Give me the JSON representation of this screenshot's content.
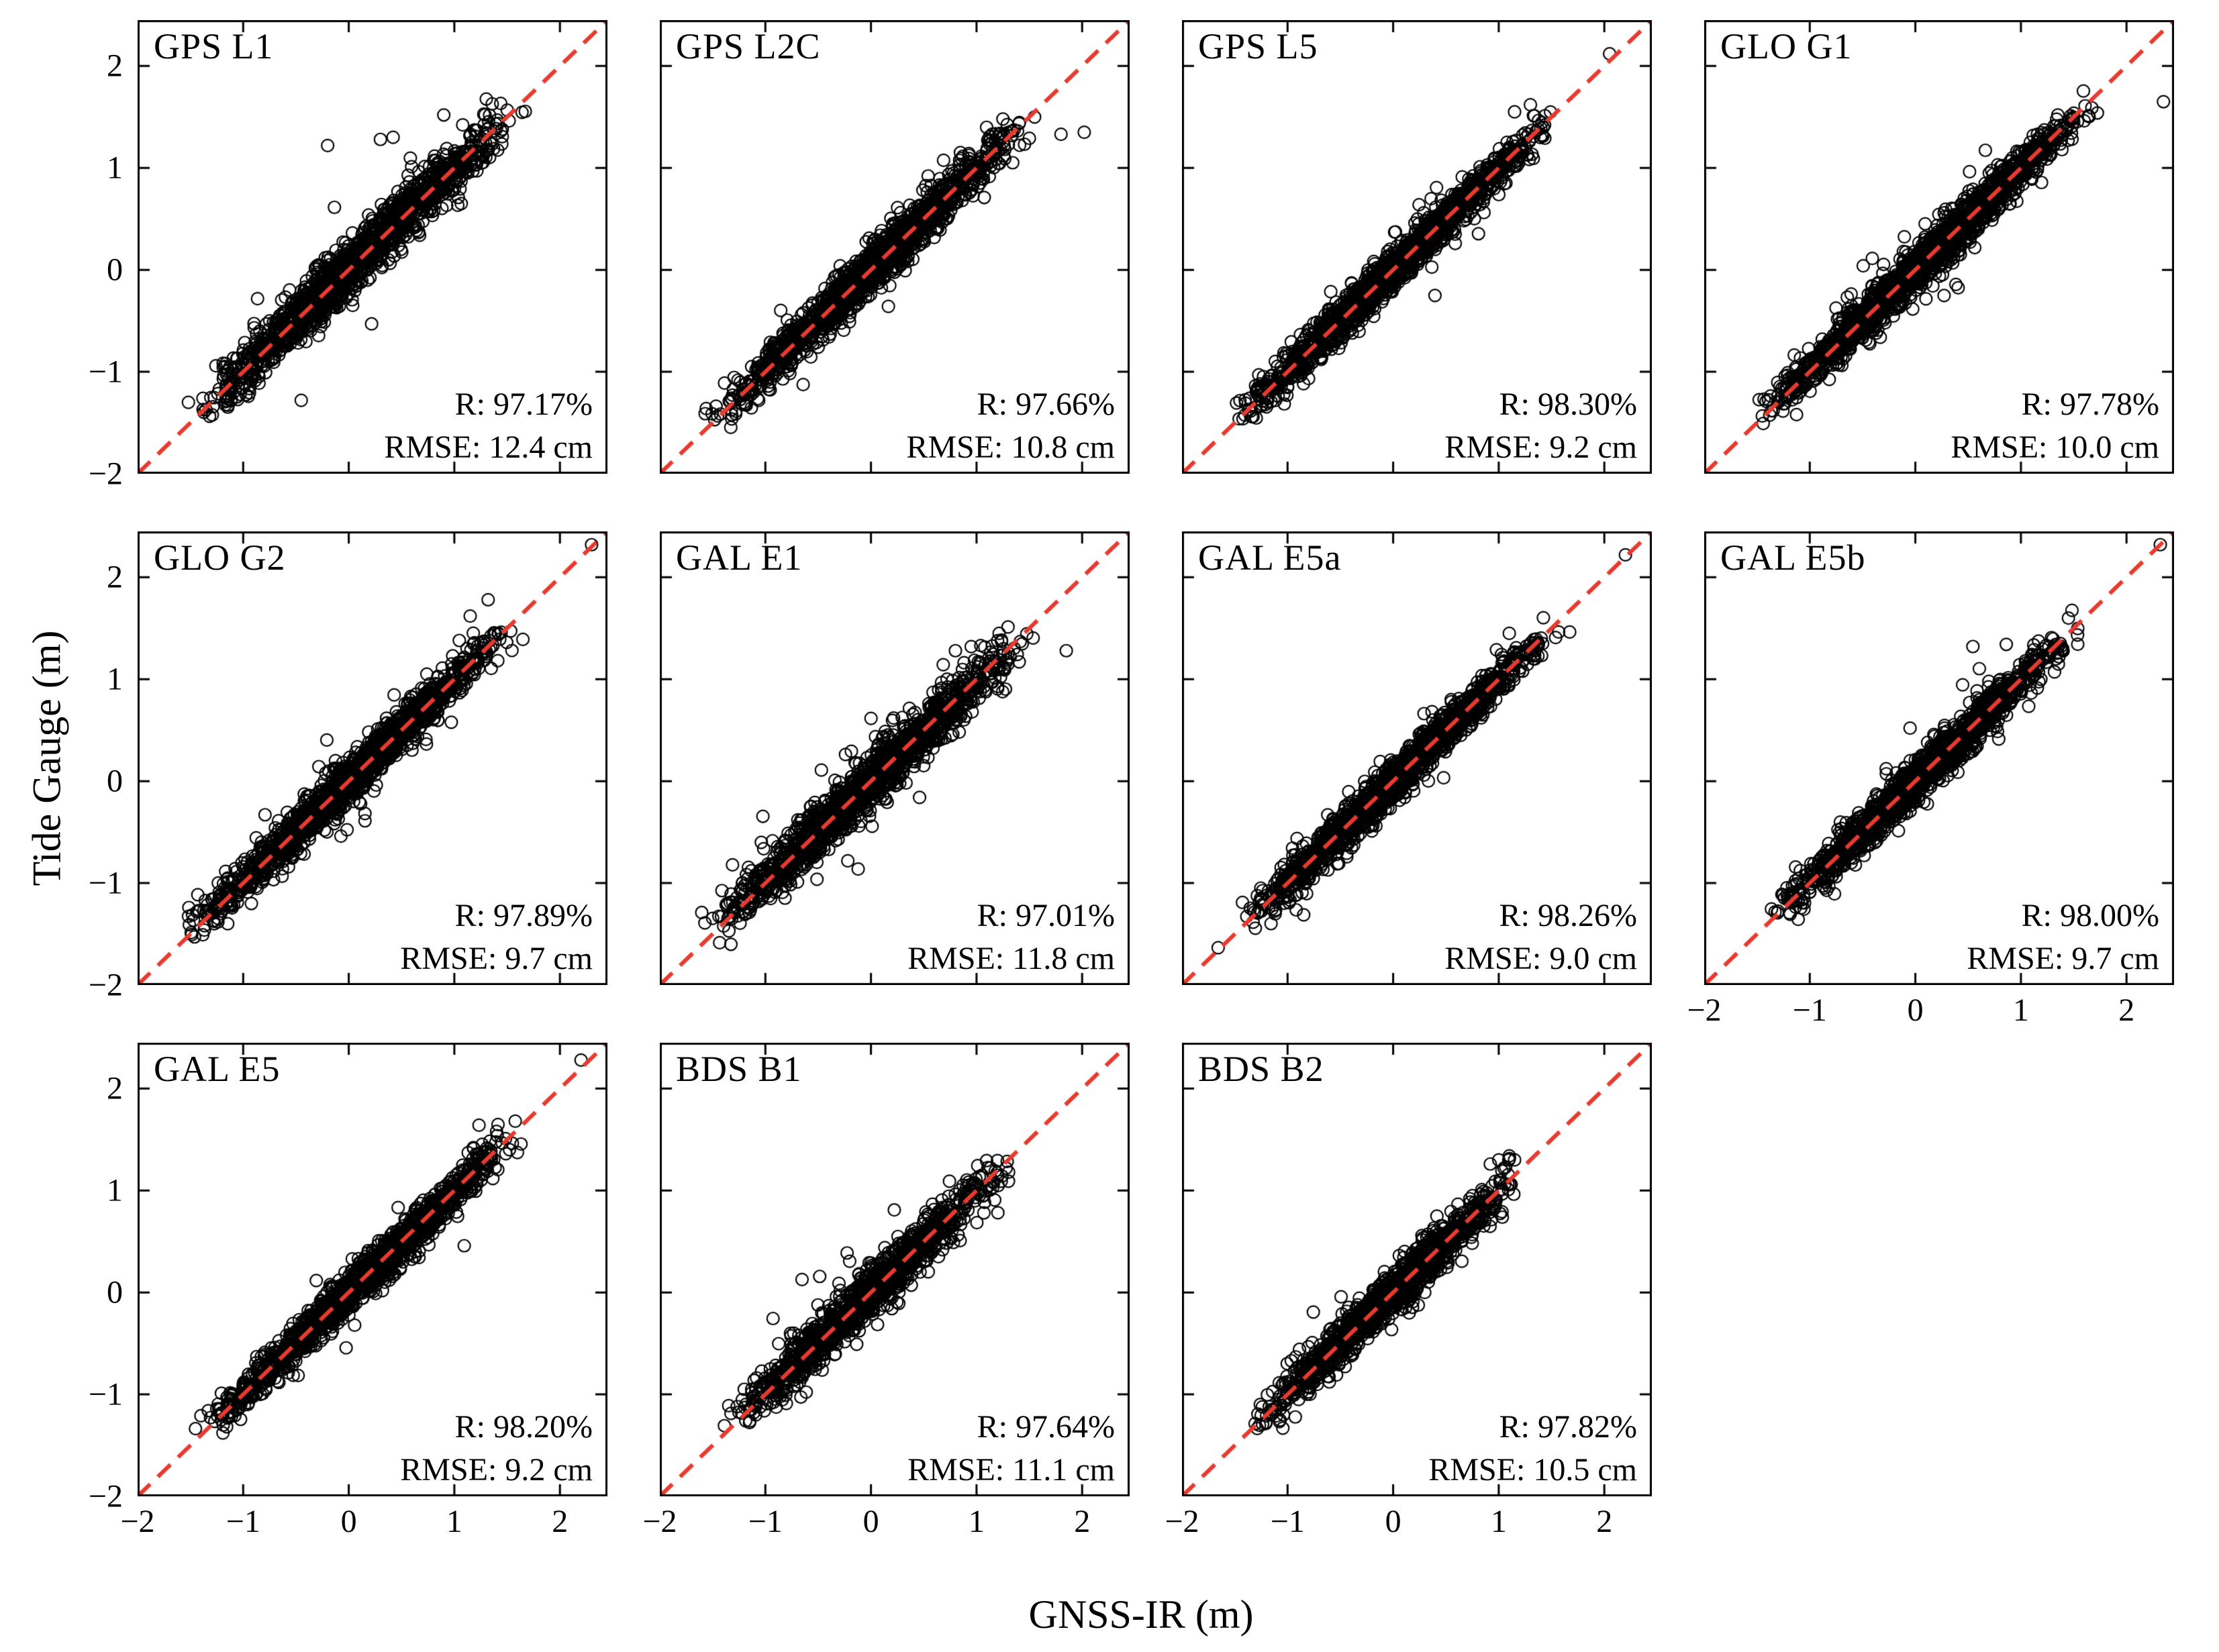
{
  "figure": {
    "xlabel": "GNSS-IR (m)",
    "ylabel": "Tide Gauge (m)",
    "axis_min": -2,
    "axis_max": 2.45,
    "tick_values": [
      -2,
      -1,
      0,
      1,
      2
    ],
    "tick_labels": [
      "−2",
      "−1",
      "0",
      "1",
      "2"
    ],
    "identity_line_color": "#e83a2e",
    "marker_color": "#000000",
    "background": "#ffffff"
  },
  "chart_data": [
    {
      "type": "scatter",
      "title": "GPS L1",
      "r_label": "R: 97.17%",
      "rmse_label": "RMSE: 12.4 cm",
      "r_percent": 97.17,
      "rmse_cm": 12.4,
      "n_points": 1500,
      "data_range": [
        -1.45,
        1.6
      ],
      "outliers": [
        [
          -0.2,
          1.22
        ],
        [
          0.3,
          1.28
        ],
        [
          0.42,
          1.3
        ],
        [
          0.9,
          1.52
        ],
        [
          -0.45,
          -1.28
        ]
      ],
      "show_x_ticks": false,
      "show_y_ticks": true
    },
    {
      "type": "scatter",
      "title": "GPS L2C",
      "r_label": "R: 97.66%",
      "rmse_label": "RMSE: 10.8 cm",
      "r_percent": 97.66,
      "rmse_cm": 10.8,
      "n_points": 1500,
      "data_range": [
        -1.5,
        1.5
      ],
      "outliers": [
        [
          1.55,
          1.5
        ],
        [
          1.8,
          1.33
        ],
        [
          2.02,
          1.35
        ],
        [
          1.25,
          1.48
        ]
      ],
      "show_x_ticks": false,
      "show_y_ticks": false
    },
    {
      "type": "scatter",
      "title": "GPS L5",
      "r_label": "R: 98.30%",
      "rmse_label": "RMSE: 9.2 cm",
      "r_percent": 98.3,
      "rmse_cm": 9.2,
      "n_points": 1500,
      "data_range": [
        -1.5,
        1.5
      ],
      "outliers": [
        [
          2.05,
          2.12
        ],
        [
          1.3,
          1.62
        ],
        [
          1.15,
          1.55
        ]
      ],
      "show_x_ticks": false,
      "show_y_ticks": false
    },
    {
      "type": "scatter",
      "title": "GLO G1",
      "r_label": "R: 97.78%",
      "rmse_label": "RMSE: 10.0 cm",
      "r_percent": 97.78,
      "rmse_cm": 10.0,
      "n_points": 1700,
      "data_range": [
        -1.5,
        1.65
      ],
      "outliers": [
        [
          2.35,
          1.65
        ],
        [
          1.35,
          1.52
        ],
        [
          1.5,
          1.45
        ]
      ],
      "show_x_ticks": false,
      "show_y_ticks": false
    },
    {
      "type": "scatter",
      "title": "GLO G2",
      "r_label": "R: 97.89%",
      "rmse_label": "RMSE: 9.7 cm",
      "r_percent": 97.89,
      "rmse_cm": 9.7,
      "n_points": 1600,
      "data_range": [
        -1.5,
        1.55
      ],
      "outliers": [
        [
          2.3,
          2.32
        ],
        [
          1.15,
          1.62
        ],
        [
          1.32,
          1.78
        ]
      ],
      "show_x_ticks": false,
      "show_y_ticks": true
    },
    {
      "type": "scatter",
      "title": "GAL E1",
      "r_label": "R: 97.01%",
      "rmse_label": "RMSE: 11.8 cm",
      "r_percent": 97.01,
      "rmse_cm": 11.8,
      "n_points": 1500,
      "data_range": [
        -1.5,
        1.45
      ],
      "outliers": [
        [
          1.85,
          1.28
        ],
        [
          0.95,
          1.32
        ],
        [
          0.8,
          1.28
        ]
      ],
      "show_x_ticks": false,
      "show_y_ticks": false
    },
    {
      "type": "scatter",
      "title": "GAL E5a",
      "r_label": "R: 98.26%",
      "rmse_label": "RMSE: 9.0 cm",
      "r_percent": 98.26,
      "rmse_cm": 9.0,
      "n_points": 1500,
      "data_range": [
        -1.45,
        1.5
      ],
      "outliers": [
        [
          2.2,
          2.22
        ],
        [
          1.1,
          1.45
        ]
      ],
      "show_x_ticks": false,
      "show_y_ticks": false
    },
    {
      "type": "scatter",
      "title": "GAL E5b",
      "r_label": "R: 98.00%",
      "rmse_label": "RMSE: 9.7 cm",
      "r_percent": 98.0,
      "rmse_cm": 9.7,
      "n_points": 1400,
      "data_range": [
        -1.4,
        1.55
      ],
      "outliers": [
        [
          2.32,
          2.32
        ],
        [
          -0.05,
          0.52
        ],
        [
          1.45,
          1.6
        ]
      ],
      "show_x_ticks": true,
      "show_y_ticks": false
    },
    {
      "type": "scatter",
      "title": "GAL E5",
      "r_label": "R: 98.20%",
      "rmse_label": "RMSE: 9.2 cm",
      "r_percent": 98.2,
      "rmse_cm": 9.2,
      "n_points": 1500,
      "data_range": [
        -1.4,
        1.6
      ],
      "outliers": [
        [
          2.2,
          2.28
        ],
        [
          1.4,
          1.58
        ]
      ],
      "show_x_ticks": true,
      "show_y_ticks": true
    },
    {
      "type": "scatter",
      "title": "BDS B1",
      "r_label": "R: 97.64%",
      "rmse_label": "RMSE: 11.1 cm",
      "r_percent": 97.64,
      "rmse_cm": 11.1,
      "n_points": 1200,
      "data_range": [
        -1.3,
        1.3
      ],
      "outliers": [
        [
          1.28,
          1.22
        ],
        [
          1.2,
          1.15
        ],
        [
          -1.2,
          -0.95
        ]
      ],
      "show_x_ticks": true,
      "show_y_ticks": false
    },
    {
      "type": "scatter",
      "title": "BDS B2",
      "r_label": "R: 97.82%",
      "rmse_label": "RMSE: 10.5 cm",
      "r_percent": 97.82,
      "rmse_cm": 10.5,
      "n_points": 1200,
      "data_range": [
        -1.3,
        1.2
      ],
      "outliers": [
        [
          1.0,
          1.3
        ],
        [
          1.1,
          1.34
        ],
        [
          0.92,
          1.26
        ],
        [
          1.05,
          1.22
        ],
        [
          1.15,
          1.3
        ]
      ],
      "show_x_ticks": true,
      "show_y_ticks": false
    }
  ]
}
